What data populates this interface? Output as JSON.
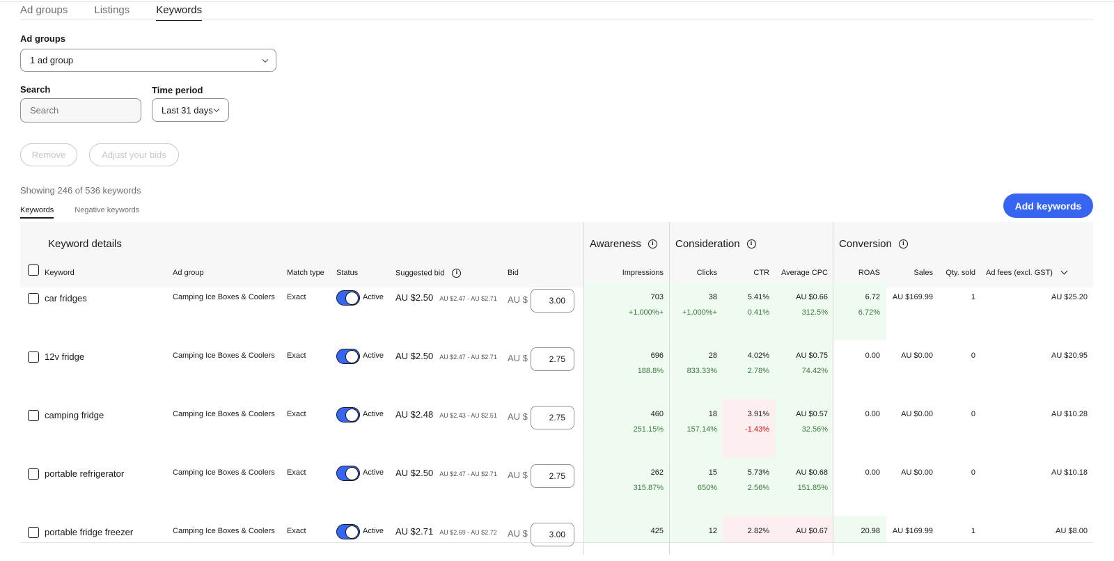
{
  "top_tabs": [
    "Ad groups",
    "Listings",
    "Keywords"
  ],
  "filters": {
    "ad_groups_label": "Ad groups",
    "ad_groups_value": "1 ad group",
    "search_label": "Search",
    "search_placeholder": "Search",
    "time_period_label": "Time period",
    "time_period_value": "Last 31 days"
  },
  "actions": {
    "remove": "Remove",
    "adjust_bids": "Adjust your bids",
    "add_keywords": "Add keywords"
  },
  "showing": "Showing 246 of 536 keywords",
  "sub_tabs": [
    "Keywords",
    "Negative keywords"
  ],
  "groups": {
    "keyword_details": "Keyword details",
    "awareness": "Awareness",
    "consideration": "Consideration",
    "conversion": "Conversion"
  },
  "columns": {
    "keyword": "Keyword",
    "ad_group": "Ad group",
    "match_type": "Match type",
    "status": "Status",
    "suggested_bid": "Suggested bid",
    "bid": "Bid",
    "impressions": "Impressions",
    "clicks": "Clicks",
    "ctr": "CTR",
    "avg_cpc": "Average CPC",
    "roas": "ROAS",
    "sales": "Sales",
    "qty_sold": "Qty. sold",
    "ad_fees": "Ad fees (excl. GST)"
  },
  "bid_prefix": "AU $",
  "rows": [
    {
      "keyword": "car fridges",
      "ad_group": "Camping Ice Boxes & Coolers",
      "match": "Exact",
      "status": "Active",
      "sug": "AU $2.50",
      "sug_range": "AU $2.47 - AU $2.71",
      "bid": "3.00",
      "impr": "703",
      "impr_d": "+1,000%+",
      "clicks": "38",
      "clicks_d": "+1,000%+",
      "ctr": "5.41%",
      "ctr_d": "0.41%",
      "cpc": "AU $0.66",
      "cpc_d": "312.5%",
      "roas": "6.72",
      "roas_d": "6.72%",
      "sales": "AU $169.99",
      "qty": "1",
      "fees": "AU $25.20"
    },
    {
      "keyword": "12v fridge",
      "ad_group": "Camping Ice Boxes & Coolers",
      "match": "Exact",
      "status": "Active",
      "sug": "AU $2.50",
      "sug_range": "AU $2.47 - AU $2.71",
      "bid": "2.75",
      "impr": "696",
      "impr_d": "188.8%",
      "clicks": "28",
      "clicks_d": "833.33%",
      "ctr": "4.02%",
      "ctr_d": "2.78%",
      "cpc": "AU $0.75",
      "cpc_d": "74.42%",
      "roas": "0.00",
      "roas_d": "",
      "sales": "AU $0.00",
      "qty": "0",
      "fees": "AU $20.95"
    },
    {
      "keyword": "camping fridge",
      "ad_group": "Camping Ice Boxes & Coolers",
      "match": "Exact",
      "status": "Active",
      "sug": "AU $2.48",
      "sug_range": "AU $2.43 - AU $2.51",
      "bid": "2.75",
      "impr": "460",
      "impr_d": "251.15%",
      "clicks": "18",
      "clicks_d": "157.14%",
      "ctr": "3.91%",
      "ctr_d": "-1.43%",
      "cpc": "AU $0.57",
      "cpc_d": "32.56%",
      "roas": "0.00",
      "roas_d": "",
      "sales": "AU $0.00",
      "qty": "0",
      "fees": "AU $10.28"
    },
    {
      "keyword": "portable refrigerator",
      "ad_group": "Camping Ice Boxes & Coolers",
      "match": "Exact",
      "status": "Active",
      "sug": "AU $2.50",
      "sug_range": "AU $2.47 - AU $2.71",
      "bid": "2.75",
      "impr": "262",
      "impr_d": "315.87%",
      "clicks": "15",
      "clicks_d": "650%",
      "ctr": "5.73%",
      "ctr_d": "2.56%",
      "cpc": "AU $0.68",
      "cpc_d": "151.85%",
      "roas": "0.00",
      "roas_d": "",
      "sales": "AU $0.00",
      "qty": "0",
      "fees": "AU $10.18"
    },
    {
      "keyword": "portable fridge freezer",
      "ad_group": "Camping Ice Boxes & Coolers",
      "match": "Exact",
      "status": "Active",
      "sug": "AU $2.71",
      "sug_range": "AU $2.69 - AU $2.72",
      "bid": "3.00",
      "impr": "425",
      "impr_d": "",
      "clicks": "12",
      "clicks_d": "",
      "ctr": "2.82%",
      "ctr_d": "",
      "cpc": "AU $0.67",
      "cpc_d": "",
      "roas": "20.98",
      "roas_d": "",
      "sales": "AU $169.99",
      "qty": "1",
      "fees": "AU $8.00"
    }
  ],
  "colors": {
    "accent": "#3665f3",
    "positive_bg": "#effbf0",
    "negative_bg": "#fdeff0",
    "positive_text": "#3c7a3c",
    "negative_text": "#d50b0b"
  }
}
